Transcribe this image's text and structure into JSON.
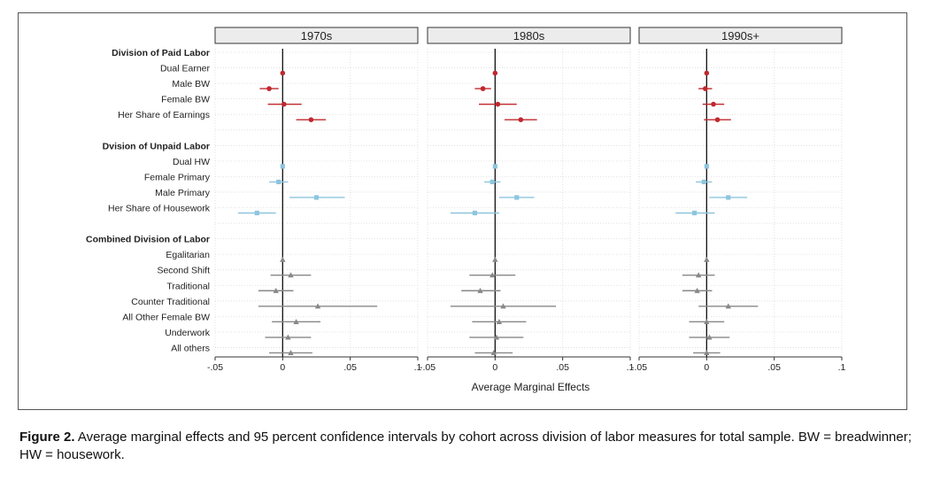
{
  "chart_data": {
    "type": "coefficient-plot",
    "xlabel": "Average Marginal Effects",
    "xlim": [
      -0.05,
      0.1
    ],
    "xticks": [
      -0.05,
      0,
      0.05,
      0.1
    ],
    "xtick_labels": [
      "-.05",
      "0",
      ".05",
      ".1"
    ],
    "panels": [
      "1970s",
      "1980s",
      "1990s+"
    ],
    "groups": [
      {
        "title": "Division of Paid Labor",
        "color": "#c0282d",
        "marker": "circle",
        "rows": [
          "Dual Earner",
          "Male BW",
          "Female BW",
          "Her Share of Earnings"
        ]
      },
      {
        "title": "Dvision of Unpaid Labor",
        "color": "#8ec5de",
        "marker": "square",
        "rows": [
          "Dual HW",
          "Female Primary",
          "Male Primary",
          "Her Share of Housework"
        ]
      },
      {
        "title": "Combined Division of Labor",
        "color": "#888888",
        "marker": "triangle",
        "rows": [
          "Egalitarian",
          "Second Shift",
          "Traditional",
          "Counter Traditional",
          "All Other Female BW",
          "Underwork",
          "All others"
        ]
      }
    ],
    "series": [
      {
        "name": "1970s",
        "estimates": [
          [
            [
              0,
              0,
              0
            ],
            [
              -0.01,
              -0.017,
              -0.003
            ],
            [
              0.001,
              -0.011,
              0.014
            ],
            [
              0.021,
              0.01,
              0.032
            ]
          ],
          [
            [
              0,
              0,
              0
            ],
            [
              -0.003,
              -0.01,
              0.004
            ],
            [
              0.025,
              0.005,
              0.046
            ],
            [
              -0.019,
              -0.033,
              -0.005
            ]
          ],
          [
            [
              0,
              0,
              0
            ],
            [
              0.006,
              -0.009,
              0.021
            ],
            [
              -0.005,
              -0.018,
              0.008
            ],
            [
              0.026,
              -0.018,
              0.07
            ],
            [
              0.01,
              -0.008,
              0.028
            ],
            [
              0.004,
              -0.013,
              0.021
            ],
            [
              0.006,
              -0.01,
              0.022
            ]
          ]
        ]
      },
      {
        "name": "1980s",
        "estimates": [
          [
            [
              0,
              0,
              0
            ],
            [
              -0.009,
              -0.015,
              -0.003
            ],
            [
              0.002,
              -0.012,
              0.016
            ],
            [
              0.019,
              0.007,
              0.031
            ]
          ],
          [
            [
              0,
              0,
              0
            ],
            [
              -0.002,
              -0.008,
              0.004
            ],
            [
              0.016,
              0.003,
              0.029
            ],
            [
              -0.015,
              -0.033,
              0.003
            ]
          ],
          [
            [
              0,
              0,
              0
            ],
            [
              -0.002,
              -0.019,
              0.015
            ],
            [
              -0.011,
              -0.025,
              0.004
            ],
            [
              0.006,
              -0.033,
              0.045
            ],
            [
              0.003,
              -0.017,
              0.023
            ],
            [
              0.001,
              -0.019,
              0.021
            ],
            [
              -0.001,
              -0.015,
              0.013
            ]
          ]
        ]
      },
      {
        "name": "1990s+",
        "estimates": [
          [
            [
              0,
              0,
              0
            ],
            [
              -0.001,
              -0.006,
              0.004
            ],
            [
              0.005,
              -0.003,
              0.013
            ],
            [
              0.008,
              -0.002,
              0.018
            ]
          ],
          [
            [
              0,
              0,
              0
            ],
            [
              -0.002,
              -0.008,
              0.004
            ],
            [
              0.016,
              0.002,
              0.03
            ],
            [
              -0.009,
              -0.023,
              0.006
            ]
          ],
          [
            [
              0,
              0,
              0
            ],
            [
              -0.006,
              -0.018,
              0.006
            ],
            [
              -0.007,
              -0.018,
              0.004
            ],
            [
              0.016,
              -0.006,
              0.038
            ],
            [
              0.0,
              -0.013,
              0.013
            ],
            [
              0.002,
              -0.013,
              0.017
            ],
            [
              0.0,
              -0.01,
              0.01
            ]
          ]
        ]
      }
    ]
  },
  "caption": {
    "label": "Figure 2.",
    "text": "Average marginal effects and 95 percent confidence intervals by cohort across division of labor measures for total sample. BW = breadwinner; HW = housework."
  }
}
